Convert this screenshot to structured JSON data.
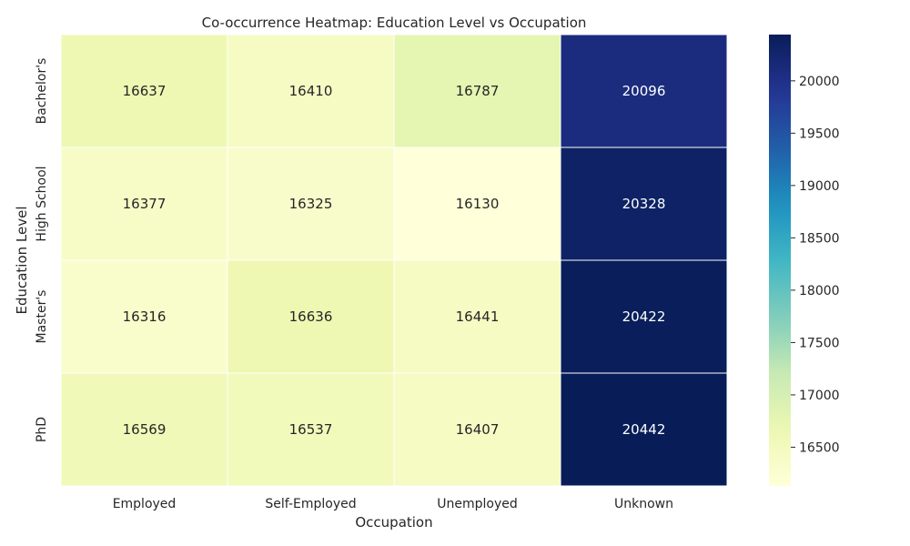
{
  "chart_data": {
    "type": "heatmap",
    "title": "Co-occurrence Heatmap: Education Level vs Occupation",
    "xlabel": "Occupation",
    "ylabel": "Education Level",
    "x_categories": [
      "Employed",
      "Self-Employed",
      "Unemployed",
      "Unknown"
    ],
    "y_categories": [
      "Bachelor's",
      "High School",
      "Master's",
      "PhD"
    ],
    "values": [
      [
        16637,
        16410,
        16787,
        20096
      ],
      [
        16377,
        16325,
        16130,
        20328
      ],
      [
        16316,
        16636,
        16441,
        20422
      ],
      [
        16569,
        16537,
        16407,
        20442
      ]
    ],
    "colormap": "YlGnBu",
    "colormap_stops": [
      "#ffffd9",
      "#edf8b1",
      "#c7e9b4",
      "#7fcdbb",
      "#41b6c4",
      "#1d91c0",
      "#225ea8",
      "#253494",
      "#081d58"
    ],
    "vmin": 16130,
    "vmax": 20442,
    "colorbar_ticks": [
      16500,
      17000,
      17500,
      18000,
      18500,
      19000,
      19500,
      20000
    ],
    "grid": false,
    "colorbar_position": "right"
  }
}
